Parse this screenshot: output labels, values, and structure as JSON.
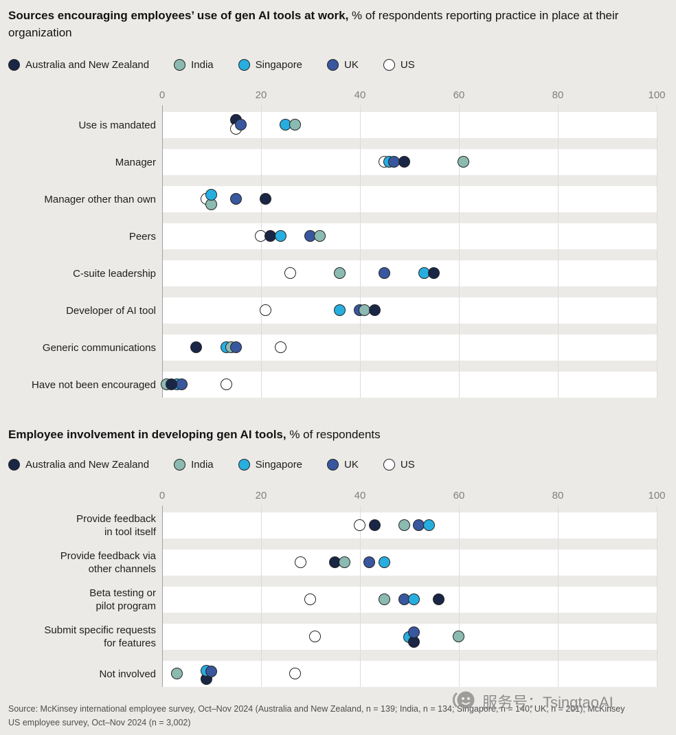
{
  "page_background": "#ECEAE7",
  "legend": {
    "items": [
      {
        "name": "Australia and New Zealand",
        "color": "#1A2645"
      },
      {
        "name": "India",
        "color": "#8BBAB1"
      },
      {
        "name": "Singapore",
        "color": "#27AEE0"
      },
      {
        "name": "UK",
        "color": "#39579E"
      },
      {
        "name": "US",
        "color": "#FFFFFF"
      }
    ],
    "dot_outline_color": "#242424"
  },
  "chart_data": [
    {
      "type": "scatter",
      "title_bold": "Sources encouraging employees’ use of gen AI tools at work,",
      "title_rest": " % of respondents reporting practice in place at their organization",
      "xlim": [
        0,
        100
      ],
      "xticks": [
        0,
        20,
        40,
        60,
        80,
        100
      ],
      "grid": true,
      "legend_position": "top",
      "categories": [
        "Use is mandated",
        "Manager",
        "Manager other than own",
        "Peers",
        "C-suite leadership",
        "Developer of AI tool",
        "Generic communications",
        "Have not been encouraged"
      ],
      "series": [
        {
          "name": "Australia and New Zealand",
          "values": [
            15,
            49,
            21,
            22,
            55,
            43,
            7,
            2
          ]
        },
        {
          "name": "India",
          "values": [
            27,
            61,
            10,
            32,
            36,
            41,
            14,
            1
          ]
        },
        {
          "name": "Singapore",
          "values": [
            25,
            46,
            10,
            24,
            53,
            36,
            13,
            3
          ]
        },
        {
          "name": "UK",
          "values": [
            16,
            47,
            15,
            30,
            45,
            40,
            15,
            4
          ]
        },
        {
          "name": "US",
          "values": [
            15,
            45,
            9,
            20,
            26,
            21,
            24,
            13
          ]
        }
      ]
    },
    {
      "type": "scatter",
      "title_bold": "Employee involvement in developing gen AI tools,",
      "title_rest": " % of respondents",
      "xlim": [
        0,
        100
      ],
      "xticks": [
        0,
        20,
        40,
        60,
        80,
        100
      ],
      "grid": true,
      "legend_position": "top",
      "categories": [
        "Provide feedback\nin tool itself",
        "Provide feedback via\nother channels",
        "Beta testing or\npilot program",
        "Submit specific requests\nfor features",
        "Not involved"
      ],
      "series": [
        {
          "name": "Australia and New Zealand",
          "values": [
            43,
            35,
            56,
            51,
            9
          ]
        },
        {
          "name": "India",
          "values": [
            49,
            37,
            45,
            60,
            3
          ]
        },
        {
          "name": "Singapore",
          "values": [
            54,
            45,
            51,
            50,
            9
          ]
        },
        {
          "name": "UK",
          "values": [
            52,
            42,
            49,
            51,
            10
          ]
        },
        {
          "name": "US",
          "values": [
            40,
            28,
            30,
            31,
            27
          ]
        }
      ]
    }
  ],
  "render_hints": {
    "charts": [
      {
        "dy": [
          [
            -7,
            0,
            0,
            0,
            6
          ],
          [
            0,
            0,
            0,
            0,
            0
          ],
          [
            0,
            8,
            -6,
            0,
            0
          ],
          [
            0,
            0,
            0,
            0,
            0
          ],
          [
            0,
            0,
            0,
            0,
            0
          ],
          [
            0,
            0,
            0,
            0,
            0
          ],
          [
            0,
            0,
            0,
            0,
            0
          ],
          [
            0,
            0,
            0,
            0,
            0
          ]
        ],
        "z": [
          [
            3,
            3,
            2,
            5,
            4
          ],
          [
            4,
            5,
            2,
            3,
            1
          ],
          [
            3,
            3,
            4,
            3,
            2
          ],
          [
            2,
            3,
            3,
            2,
            1
          ],
          [
            3,
            1,
            2,
            1,
            1
          ],
          [
            4,
            3,
            1,
            2,
            1
          ],
          [
            1,
            3,
            2,
            4,
            1
          ],
          [
            4,
            1,
            2,
            3,
            1
          ]
        ]
      },
      {
        "dy": [
          [
            0,
            0,
            0,
            0,
            0
          ],
          [
            0,
            0,
            0,
            0,
            0
          ],
          [
            0,
            0,
            0,
            0,
            0
          ],
          [
            8,
            0,
            1,
            -6,
            0
          ],
          [
            8,
            0,
            -4,
            -3,
            0
          ]
        ],
        "z": [
          [
            2,
            2,
            4,
            3,
            1
          ],
          [
            1,
            2,
            2,
            1,
            1
          ],
          [
            1,
            1,
            2,
            1,
            1
          ],
          [
            3,
            1,
            2,
            4,
            1
          ],
          [
            2,
            1,
            3,
            4,
            1
          ]
        ]
      }
    ],
    "gridline_color": "#DBDBDB",
    "zeroline_color": "#A0A0A0"
  },
  "source": {
    "lines": [
      "Source: McKinsey international employee survey, Oct–Nov 2024 (Australia and New Zealand, n = 139; India, n = 134; Singapore, n = 140; UK, n = 201); McKinsey",
      "US employee survey, Oct–Nov 2024 (n = 3,002)"
    ]
  },
  "watermark": {
    "text": "服务号：TsingtaoAI"
  }
}
